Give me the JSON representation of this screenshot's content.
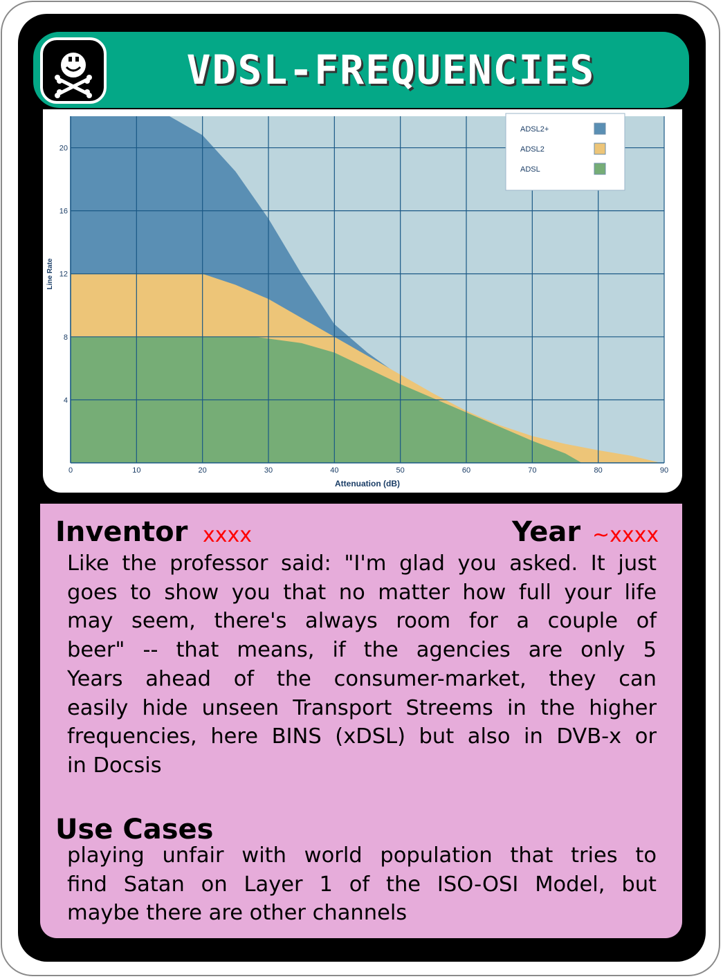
{
  "card": {
    "title": "VDSL-FREQUENCIES",
    "logo_icon": "skull-crossbones-icon",
    "colors": {
      "header": "#04a887",
      "panel": "#e6acda",
      "value_red": "#ff0000"
    }
  },
  "chart_data": {
    "type": "area",
    "xlabel": "Attenuation (dB)",
    "ylabel": "Line Rate",
    "xlim": [
      0,
      90
    ],
    "ylim": [
      0,
      22
    ],
    "x_ticks": [
      "0",
      "10",
      "20",
      "30",
      "40",
      "50",
      "60",
      "70",
      "80",
      "90"
    ],
    "y_ticks": [
      "4",
      "8",
      "12",
      "16",
      "20"
    ],
    "grid": true,
    "legend_position": "top-right",
    "series": [
      {
        "name": "ADSL2+",
        "color": "#5a8fb4",
        "x": [
          0,
          15,
          20,
          25,
          30,
          35,
          40,
          45,
          50,
          52.5
        ],
        "y": [
          22,
          22,
          20.8,
          18.5,
          15.5,
          12,
          8.8,
          7,
          5.5,
          4.8
        ]
      },
      {
        "name": "ADSL2",
        "color": "#edc578",
        "x": [
          0,
          20,
          25,
          30,
          35,
          40,
          45,
          50,
          55,
          60,
          65,
          70,
          75,
          80,
          85,
          89
        ],
        "y": [
          12,
          12,
          11.3,
          10.4,
          9.2,
          8,
          6.8,
          5.6,
          4.4,
          3.3,
          2.4,
          1.7,
          1.2,
          0.8,
          0.45,
          0.05
        ]
      },
      {
        "name": "ADSL",
        "color": "#76ad76",
        "x": [
          0,
          28,
          35,
          40,
          45,
          50,
          55,
          60,
          65,
          70,
          75,
          77.5
        ],
        "y": [
          8,
          8,
          7.6,
          7,
          6,
          5,
          4.1,
          3.2,
          2.3,
          1.4,
          0.6,
          0
        ]
      }
    ],
    "background_color": "#bcd5dd",
    "grid_color": "#1a5885"
  },
  "info": {
    "inventor_label": "Inventor",
    "inventor_value": "xxxx",
    "year_label": "Year",
    "year_value": "~xxxx",
    "description_lines": [
      "Like the professor said: \"I'm glad you asked. It just",
      "goes to show you that no matter how full your life",
      "may seem, there's always room for a couple of",
      "beer\" -- that means, if the agencies are only 5",
      "Years ahead of the consumer-market, they can",
      "easily hide unseen Transport Streems in the higher",
      "frequencies, here BINS (xDSL) but also in DVB-x or",
      "in Docsis"
    ],
    "use_cases_label": "Use Cases",
    "use_cases_lines": [
      "playing unfair with world population that tries to",
      "find Satan on Layer 1 of the ISO-OSI Model, but",
      "maybe there are other channels"
    ]
  }
}
